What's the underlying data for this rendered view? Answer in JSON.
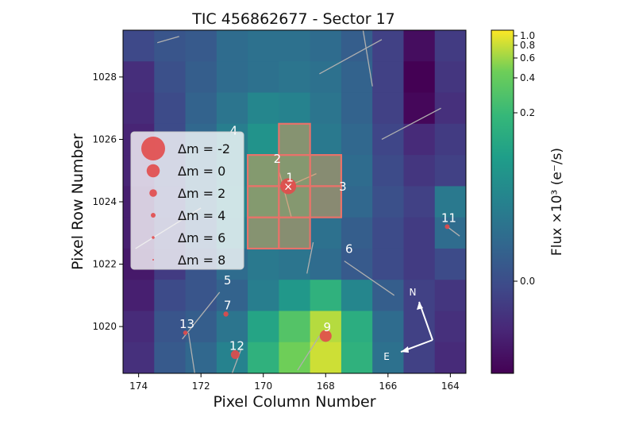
{
  "chart_data": {
    "type": "heatmap",
    "title": "TIC 456862677 - Sector 17",
    "xlabel": "Pixel Column Number",
    "ylabel": "Pixel Row Number",
    "x_ticks": [
      "174",
      "172",
      "170",
      "168",
      "166",
      "164"
    ],
    "y_ticks": [
      "1020",
      "1022",
      "1024",
      "1026",
      "1028"
    ],
    "colorbar": {
      "label": "Flux ×10³ (e⁻/s)",
      "ticks": [
        "0.0",
        "0.2",
        "0.4",
        "0.6",
        "0.8",
        "1.0"
      ],
      "colormap": "viridis"
    },
    "pixels": {
      "x_values": [
        174,
        173,
        172,
        171,
        170,
        169,
        168,
        167,
        166,
        165,
        164
      ],
      "y_values": [
        1029,
        1028,
        1027,
        1026,
        1025,
        1024,
        1023,
        1022,
        1021,
        1020,
        1019
      ],
      "flux_level": [
        [
          0.25,
          0.3,
          0.32,
          0.4,
          0.42,
          0.42,
          0.4,
          0.34,
          0.22,
          0.04,
          0.2
        ],
        [
          0.15,
          0.28,
          0.34,
          0.4,
          0.42,
          0.44,
          0.42,
          0.36,
          0.22,
          0.0,
          0.18
        ],
        [
          0.14,
          0.26,
          0.36,
          0.44,
          0.52,
          0.5,
          0.44,
          0.36,
          0.22,
          0.02,
          0.16
        ],
        [
          0.12,
          0.26,
          0.38,
          0.48,
          0.58,
          0.56,
          0.46,
          0.38,
          0.24,
          0.14,
          0.2
        ],
        [
          0.12,
          0.26,
          0.38,
          0.5,
          0.62,
          0.6,
          0.5,
          0.4,
          0.26,
          0.18,
          0.22
        ],
        [
          0.1,
          0.24,
          0.38,
          0.52,
          0.62,
          0.6,
          0.48,
          0.38,
          0.28,
          0.22,
          0.46
        ],
        [
          0.1,
          0.22,
          0.34,
          0.48,
          0.56,
          0.52,
          0.42,
          0.34,
          0.26,
          0.2,
          0.4
        ],
        [
          0.08,
          0.2,
          0.3,
          0.4,
          0.46,
          0.44,
          0.4,
          0.32,
          0.26,
          0.2,
          0.26
        ],
        [
          0.1,
          0.26,
          0.3,
          0.36,
          0.48,
          0.6,
          0.72,
          0.52,
          0.34,
          0.22,
          0.18
        ],
        [
          0.14,
          0.3,
          0.34,
          0.44,
          0.66,
          0.82,
          0.94,
          0.7,
          0.4,
          0.22,
          0.16
        ],
        [
          0.16,
          0.32,
          0.38,
          0.5,
          0.72,
          0.88,
          0.96,
          0.72,
          0.42,
          0.22,
          0.14
        ]
      ]
    },
    "aperture": [
      [
        170,
        1025
      ],
      [
        169,
        1025
      ],
      [
        168,
        1025
      ],
      [
        170,
        1024
      ],
      [
        169,
        1024
      ],
      [
        168,
        1024
      ],
      [
        170,
        1023
      ],
      [
        169,
        1023
      ],
      [
        169,
        1026
      ]
    ],
    "sources": [
      {
        "label": "1",
        "x": 169.2,
        "y": 1024.5,
        "size": 0.8
      },
      {
        "label": "2",
        "x": 169.6,
        "y": 1025.1,
        "size": 0.0
      },
      {
        "label": "3",
        "x": 167.5,
        "y": 1024.2,
        "size": 0.0
      },
      {
        "label": "4",
        "x": 171.0,
        "y": 1026.0,
        "size": 0.0
      },
      {
        "label": "5",
        "x": 171.2,
        "y": 1021.2,
        "size": 0.0
      },
      {
        "label": "6",
        "x": 167.3,
        "y": 1022.2,
        "size": 0.0
      },
      {
        "label": "7",
        "x": 171.2,
        "y": 1020.4,
        "size": 0.12
      },
      {
        "label": "9",
        "x": 168.0,
        "y": 1019.7,
        "size": 0.55
      },
      {
        "label": "11",
        "x": 164.1,
        "y": 1023.2,
        "size": 0.1
      },
      {
        "label": "12",
        "x": 170.9,
        "y": 1019.1,
        "size": 0.35
      },
      {
        "label": "13",
        "x": 172.5,
        "y": 1019.8,
        "size": 0.08
      }
    ],
    "legend": {
      "placement": "left",
      "entries": [
        {
          "label": "Δm =  -2",
          "size": 1.0
        },
        {
          "label": "Δm =  0",
          "size": 0.55
        },
        {
          "label": "Δm =  2",
          "size": 0.32
        },
        {
          "label": "Δm =  4",
          "size": 0.2
        },
        {
          "label": "Δm =  6",
          "size": 0.12
        },
        {
          "label": "Δm =  8",
          "size": 0.06
        }
      ]
    },
    "compass": {
      "north": "N",
      "east": "E"
    }
  },
  "colors": {
    "aperture_edge": "#e8726a",
    "aperture_fill": "#ff9a50",
    "source": "#e24b4b",
    "label": "#ffffff",
    "arrow": "#b0b0b0"
  }
}
